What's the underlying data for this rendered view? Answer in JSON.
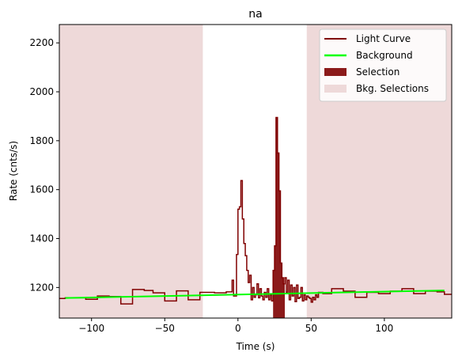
{
  "chart_data": {
    "type": "line",
    "title": "na",
    "xlabel": "Time (s)",
    "ylabel": "Rate (cnts/s)",
    "xlim": [
      -122,
      146
    ],
    "ylim": [
      1075,
      2275
    ],
    "xticks": [
      -100,
      -50,
      0,
      50,
      100
    ],
    "xtick_labels": [
      "−100",
      "−50",
      "0",
      "50",
      "100"
    ],
    "yticks": [
      1200,
      1400,
      1600,
      1800,
      2000,
      2200
    ],
    "ytick_labels": [
      "1200",
      "1400",
      "1600",
      "1800",
      "2000",
      "2200"
    ],
    "grid": false,
    "legend": {
      "position": "top-right",
      "entries": [
        {
          "label": "Light Curve",
          "kind": "line",
          "color": "#800000"
        },
        {
          "label": "Background",
          "kind": "line",
          "color": "#00ff00"
        },
        {
          "label": "Selection",
          "kind": "patch",
          "color": "#8b1a1a"
        },
        {
          "label": "Bkg. Selections",
          "kind": "patch",
          "color": "#eed9d9"
        }
      ]
    },
    "background_line": {
      "x": [
        -118,
        141
      ],
      "y": [
        1157,
        1188
      ],
      "color": "#00ff00"
    },
    "bkg_selections": [
      {
        "x0": -122,
        "x1": -24,
        "color": "#eed9d9"
      },
      {
        "x0": 47,
        "x1": 146,
        "color": "#eed9d9"
      }
    ],
    "selection_span": {
      "x0": 24,
      "x1": 32,
      "floor": 1075,
      "color": "#8b1a1a"
    },
    "light_curve": {
      "color": "#800000",
      "edges": [
        -122,
        -118,
        -108,
        -104,
        -96,
        -88,
        -80,
        -72,
        -64,
        -58,
        -50,
        -42,
        -34,
        -26,
        -24,
        -16,
        -8,
        -4,
        -3,
        -1,
        0,
        1,
        2,
        3,
        4,
        5,
        6,
        7,
        8,
        9,
        10,
        11,
        12,
        13,
        14,
        15,
        16,
        17,
        18,
        19,
        20,
        21,
        22,
        23,
        24,
        25,
        26,
        27,
        28,
        29,
        30,
        31,
        32,
        33,
        34,
        35,
        36,
        37,
        38,
        39,
        40,
        41,
        42,
        43,
        44,
        45,
        46,
        47,
        48,
        49,
        50,
        51,
        52,
        53,
        54,
        55,
        58,
        64,
        72,
        80,
        88,
        96,
        104,
        112,
        120,
        128,
        136,
        141,
        146
      ],
      "values": [
        1155,
        1158,
        1158,
        1152,
        1165,
        1163,
        1133,
        1192,
        1188,
        1178,
        1145,
        1186,
        1150,
        1180,
        1180,
        1178,
        1182,
        1230,
        1165,
        1335,
        1520,
        1530,
        1637,
        1480,
        1380,
        1330,
        1270,
        1220,
        1250,
        1150,
        1200,
        1160,
        1170,
        1215,
        1158,
        1195,
        1165,
        1150,
        1180,
        1160,
        1195,
        1150,
        1170,
        1145,
        1270,
        1370,
        1895,
        1750,
        1595,
        1300,
        1240,
        1215,
        1240,
        1180,
        1230,
        1150,
        1210,
        1165,
        1200,
        1142,
        1210,
        1155,
        1160,
        1200,
        1145,
        1170,
        1150,
        1165,
        1160,
        1155,
        1140,
        1160,
        1150,
        1170,
        1160,
        1180,
        1175,
        1195,
        1185,
        1160,
        1180,
        1175,
        1185,
        1195,
        1175,
        1185,
        1182,
        1172
      ]
    }
  }
}
